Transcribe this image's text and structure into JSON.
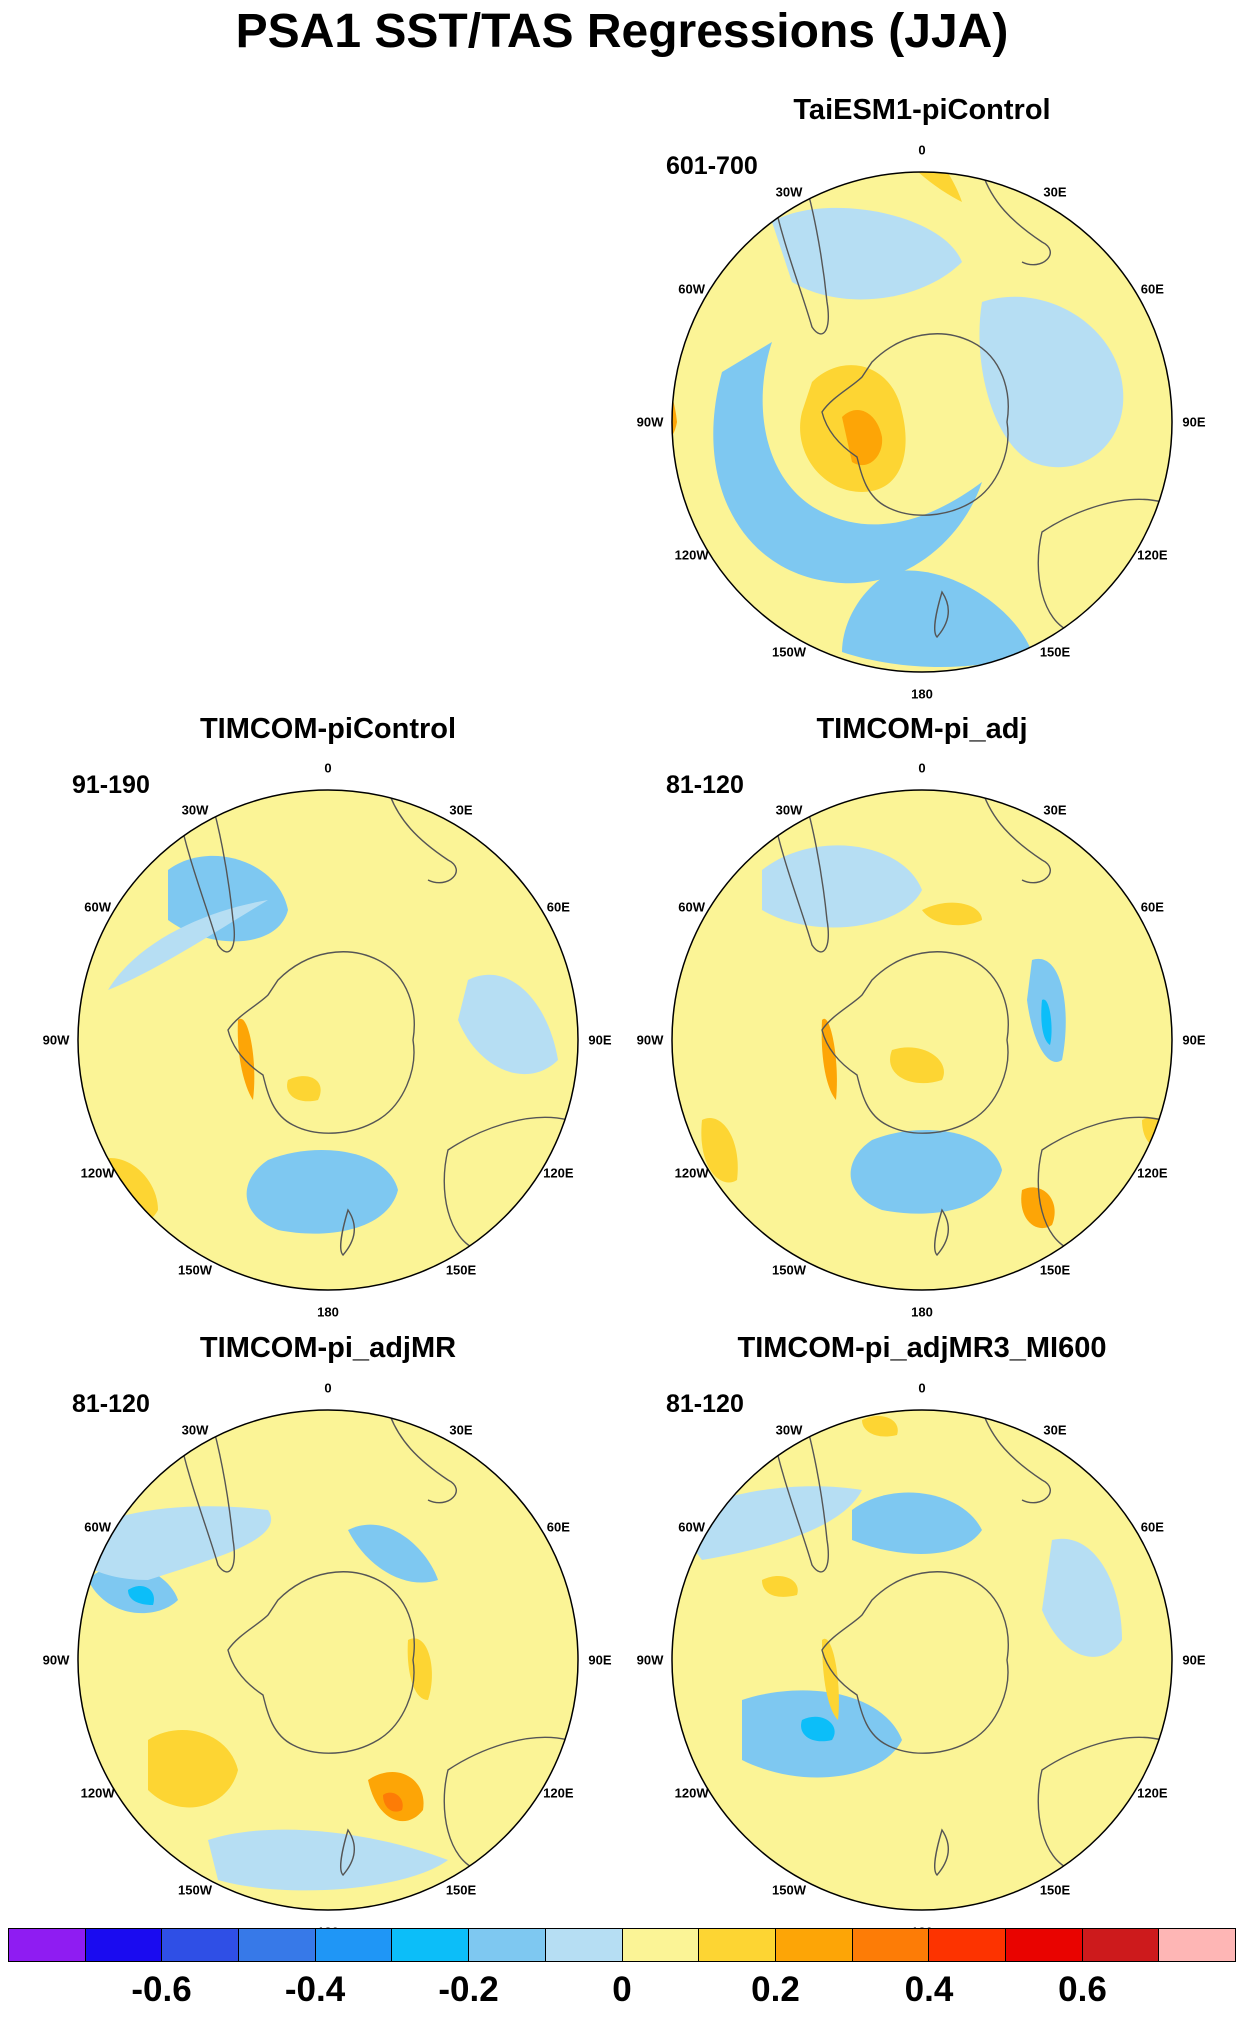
{
  "title": "PSA1 SST/TAS Regressions (JJA)",
  "lon_labels": [
    "0",
    "30E",
    "60E",
    "90E",
    "120E",
    "150E",
    "180",
    "150W",
    "120W",
    "90W",
    "60W",
    "30W"
  ],
  "panels": [
    {
      "title": "TaiESM1-piControl",
      "years": "601-700"
    },
    {
      "title": "TIMCOM-piControl",
      "years": "91-190"
    },
    {
      "title": "TIMCOM-pi_adj",
      "years": "81-120"
    },
    {
      "title": "TIMCOM-pi_adjMR",
      "years": "81-120"
    },
    {
      "title": "TIMCOM-pi_adjMR3_MI600",
      "years": "81-120"
    }
  ],
  "colorbar": {
    "colors": [
      "#8f1cf2",
      "#1a0bf0",
      "#2f4fe6",
      "#3779e8",
      "#1f96f6",
      "#0cbef9",
      "#7ec8f1",
      "#b6def3",
      "#fbf496",
      "#fdd533",
      "#fda506",
      "#fd7c06",
      "#fd3300",
      "#e90300",
      "#cd1a1c",
      "#feb6b5"
    ],
    "labels": [
      "-0.6",
      "-0.4",
      "-0.2",
      "0",
      "0.2",
      "0.4",
      "0.6"
    ]
  }
}
